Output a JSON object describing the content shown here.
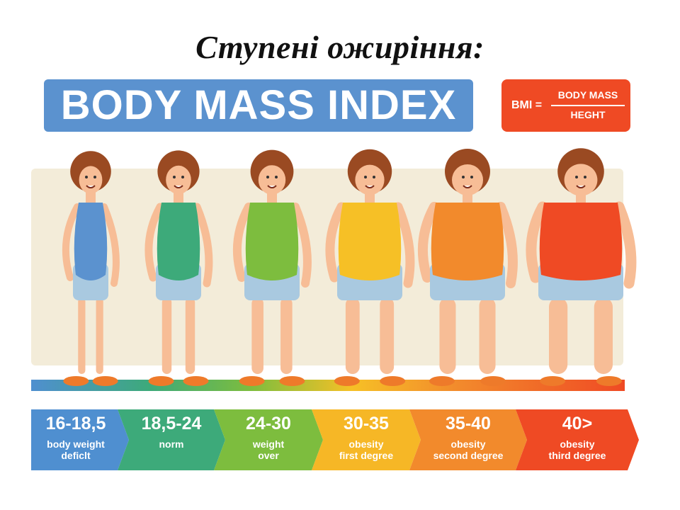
{
  "slide": {
    "title": "Ступені ожиріння:"
  },
  "banner": {
    "text": "BODY MASS INDEX"
  },
  "formula": {
    "lhs": "BMI =",
    "numerator": "BODY MASS",
    "denominator": "HEGHT"
  },
  "categories": [
    {
      "range": "16-18,5",
      "line1": "body weight",
      "line2": "deficlt",
      "color": "#4f8fd0"
    },
    {
      "range": "18,5-24",
      "line1": "norm",
      "line2": "",
      "color": "#3daa7a"
    },
    {
      "range": "24-30",
      "line1": "weight",
      "line2": "over",
      "color": "#7dbd3e"
    },
    {
      "range": "30-35",
      "line1": "obesity",
      "line2": "first degree",
      "color": "#f6b726"
    },
    {
      "range": "35-40",
      "line1": "obesity",
      "line2": "second degree",
      "color": "#f28a2c"
    },
    {
      "range": "40>",
      "line1": "obesity",
      "line2": "third degree",
      "color": "#ef4a24"
    }
  ],
  "figures": [
    {
      "suit_color": "#5b92cf",
      "body_size": 1
    },
    {
      "suit_color": "#3daa7a",
      "body_size": 2
    },
    {
      "suit_color": "#7dbd3e",
      "body_size": 3
    },
    {
      "suit_color": "#f6c026",
      "body_size": 4
    },
    {
      "suit_color": "#f28a2c",
      "body_size": 5
    },
    {
      "suit_color": "#ef4a24",
      "body_size": 6
    }
  ]
}
